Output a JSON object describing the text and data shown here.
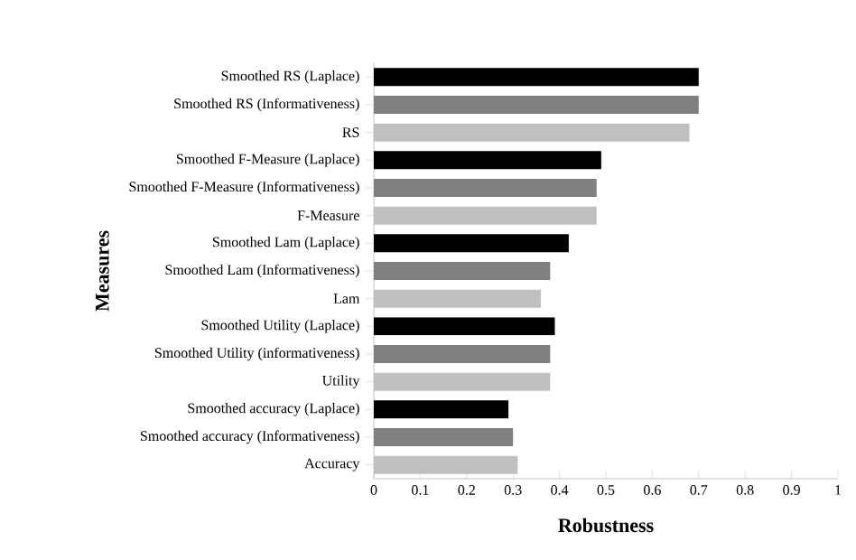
{
  "chart_data": {
    "type": "bar",
    "orientation": "horizontal",
    "xlabel": "Robustness",
    "ylabel": "Measures",
    "categories": [
      "Smoothed RS (Laplace)",
      "Smoothed RS (Informativeness)",
      "RS",
      "Smoothed F-Measure (Laplace)",
      "Smoothed F-Measure (Informativeness)",
      "F-Measure",
      "Smoothed Lam (Laplace)",
      "Smoothed Lam (Informativeness)",
      "Lam",
      "Smoothed Utility (Laplace)",
      "Smoothed Utility (informativeness)",
      "Utility",
      "Smoothed accuracy (Laplace)",
      "Smoothed accuracy (Informativeness)",
      "Accuracy"
    ],
    "values": [
      0.7,
      0.7,
      0.68,
      0.49,
      0.48,
      0.48,
      0.42,
      0.38,
      0.36,
      0.39,
      0.38,
      0.38,
      0.29,
      0.3,
      0.31
    ],
    "colors": [
      "#000000",
      "#808080",
      "#c0c0c0",
      "#000000",
      "#808080",
      "#c0c0c0",
      "#000000",
      "#808080",
      "#c0c0c0",
      "#000000",
      "#808080",
      "#c0c0c0",
      "#000000",
      "#808080",
      "#c0c0c0"
    ],
    "xlim": [
      0,
      1
    ],
    "xticks": [
      0,
      0.1,
      0.2,
      0.3,
      0.4,
      0.5,
      0.6,
      0.7,
      0.8,
      0.9,
      1
    ],
    "grid": false
  }
}
